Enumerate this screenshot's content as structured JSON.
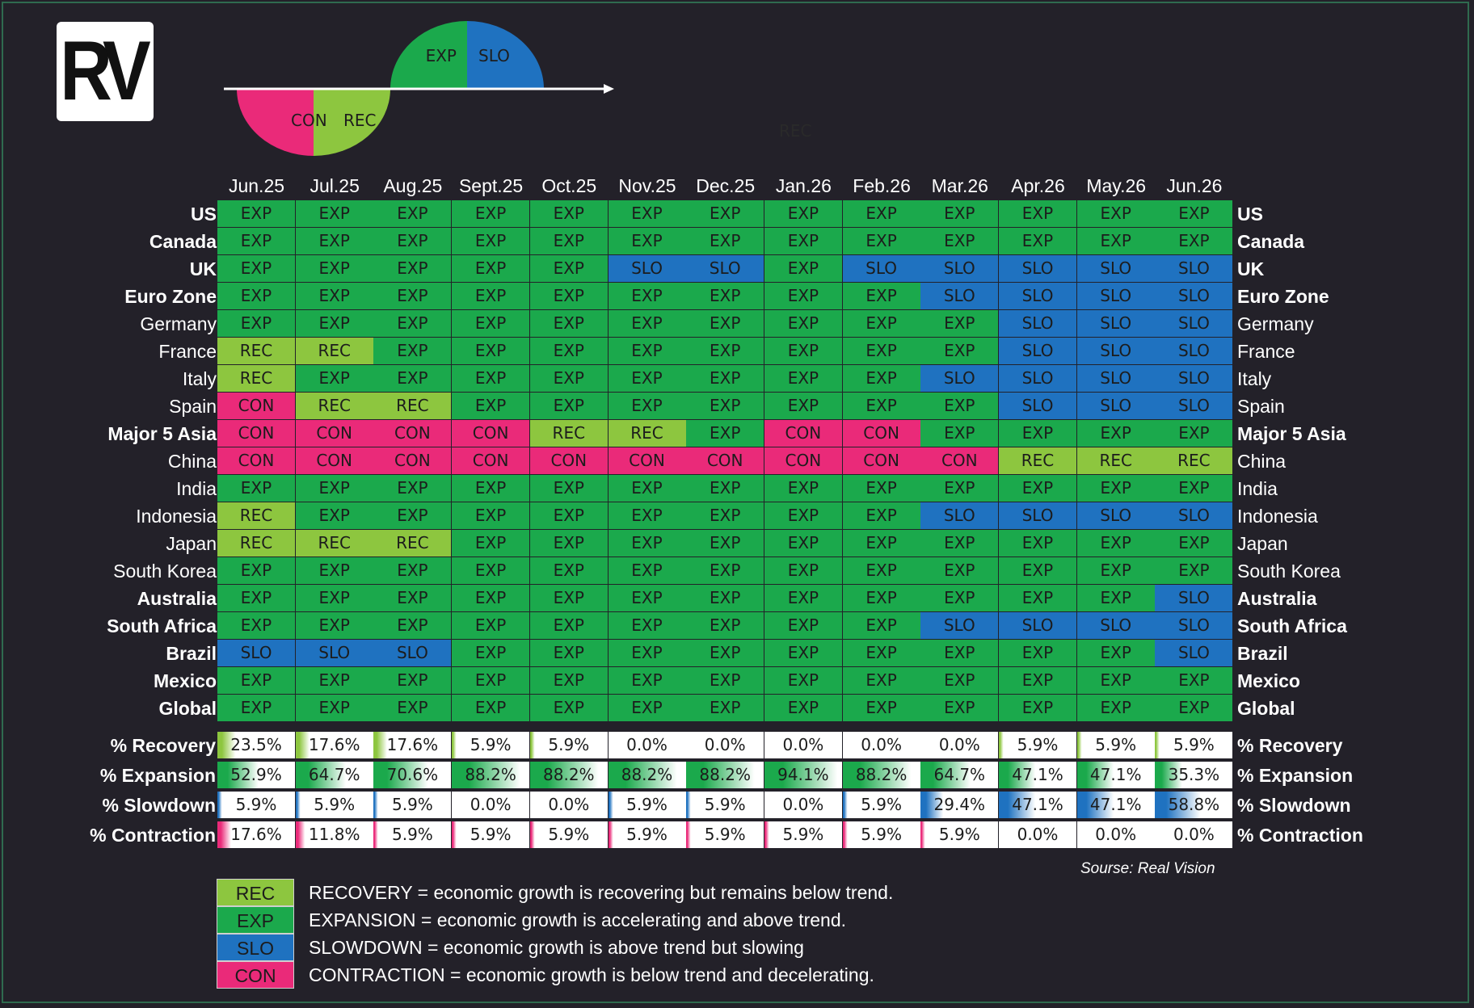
{
  "logo": {
    "text": "RV"
  },
  "cycle_diagram": {
    "labels": [
      "CON",
      "REC",
      "EXP",
      "SLO"
    ]
  },
  "stray_label": "REC",
  "colors": {
    "REC": "#8dc63f",
    "EXP": "#1ba94c",
    "SLO": "#1f72c0",
    "CON": "#ea2a79"
  },
  "chart_data": {
    "type": "heatmap",
    "columns": [
      "Jun.25",
      "Jul.25",
      "Aug.25",
      "Sept.25",
      "Oct.25",
      "Nov.25",
      "Dec.25",
      "Jan.26",
      "Feb.26",
      "Mar.26",
      "Apr.26",
      "May.26",
      "Jun.26"
    ],
    "rows": [
      {
        "label": "US",
        "bold": true,
        "phases": [
          "EXP",
          "EXP",
          "EXP",
          "EXP",
          "EXP",
          "EXP",
          "EXP",
          "EXP",
          "EXP",
          "EXP",
          "EXP",
          "EXP",
          "EXP"
        ]
      },
      {
        "label": "Canada",
        "bold": true,
        "phases": [
          "EXP",
          "EXP",
          "EXP",
          "EXP",
          "EXP",
          "EXP",
          "EXP",
          "EXP",
          "EXP",
          "EXP",
          "EXP",
          "EXP",
          "EXP"
        ]
      },
      {
        "label": "UK",
        "bold": true,
        "phases": [
          "EXP",
          "EXP",
          "EXP",
          "EXP",
          "EXP",
          "SLO",
          "SLO",
          "EXP",
          "SLO",
          "SLO",
          "SLO",
          "SLO",
          "SLO"
        ]
      },
      {
        "label": "Euro Zone",
        "bold": true,
        "phases": [
          "EXP",
          "EXP",
          "EXP",
          "EXP",
          "EXP",
          "EXP",
          "EXP",
          "EXP",
          "EXP",
          "SLO",
          "SLO",
          "SLO",
          "SLO"
        ]
      },
      {
        "label": "Germany",
        "bold": false,
        "phases": [
          "EXP",
          "EXP",
          "EXP",
          "EXP",
          "EXP",
          "EXP",
          "EXP",
          "EXP",
          "EXP",
          "EXP",
          "SLO",
          "SLO",
          "SLO"
        ]
      },
      {
        "label": "France",
        "bold": false,
        "phases": [
          "REC",
          "REC",
          "EXP",
          "EXP",
          "EXP",
          "EXP",
          "EXP",
          "EXP",
          "EXP",
          "EXP",
          "SLO",
          "SLO",
          "SLO"
        ]
      },
      {
        "label": "Italy",
        "bold": false,
        "phases": [
          "REC",
          "EXP",
          "EXP",
          "EXP",
          "EXP",
          "EXP",
          "EXP",
          "EXP",
          "EXP",
          "SLO",
          "SLO",
          "SLO",
          "SLO"
        ]
      },
      {
        "label": "Spain",
        "bold": false,
        "phases": [
          "CON",
          "REC",
          "REC",
          "EXP",
          "EXP",
          "EXP",
          "EXP",
          "EXP",
          "EXP",
          "EXP",
          "SLO",
          "SLO",
          "SLO"
        ]
      },
      {
        "label": "Major 5 Asia",
        "bold": true,
        "phases": [
          "CON",
          "CON",
          "CON",
          "CON",
          "REC",
          "REC",
          "EXP",
          "CON",
          "CON",
          "EXP",
          "EXP",
          "EXP",
          "EXP"
        ]
      },
      {
        "label": "China",
        "bold": false,
        "phases": [
          "CON",
          "CON",
          "CON",
          "CON",
          "CON",
          "CON",
          "CON",
          "CON",
          "CON",
          "CON",
          "REC",
          "REC",
          "REC"
        ]
      },
      {
        "label": "India",
        "bold": false,
        "phases": [
          "EXP",
          "EXP",
          "EXP",
          "EXP",
          "EXP",
          "EXP",
          "EXP",
          "EXP",
          "EXP",
          "EXP",
          "EXP",
          "EXP",
          "EXP"
        ]
      },
      {
        "label": "Indonesia",
        "bold": false,
        "phases": [
          "REC",
          "EXP",
          "EXP",
          "EXP",
          "EXP",
          "EXP",
          "EXP",
          "EXP",
          "EXP",
          "SLO",
          "SLO",
          "SLO",
          "SLO"
        ]
      },
      {
        "label": "Japan",
        "bold": false,
        "phases": [
          "REC",
          "REC",
          "REC",
          "EXP",
          "EXP",
          "EXP",
          "EXP",
          "EXP",
          "EXP",
          "EXP",
          "EXP",
          "EXP",
          "EXP"
        ]
      },
      {
        "label": "South Korea",
        "bold": false,
        "phases": [
          "EXP",
          "EXP",
          "EXP",
          "EXP",
          "EXP",
          "EXP",
          "EXP",
          "EXP",
          "EXP",
          "EXP",
          "EXP",
          "EXP",
          "EXP"
        ]
      },
      {
        "label": "Australia",
        "bold": true,
        "phases": [
          "EXP",
          "EXP",
          "EXP",
          "EXP",
          "EXP",
          "EXP",
          "EXP",
          "EXP",
          "EXP",
          "EXP",
          "EXP",
          "EXP",
          "SLO"
        ]
      },
      {
        "label": "South Africa",
        "bold": true,
        "phases": [
          "EXP",
          "EXP",
          "EXP",
          "EXP",
          "EXP",
          "EXP",
          "EXP",
          "EXP",
          "EXP",
          "SLO",
          "SLO",
          "SLO",
          "SLO"
        ]
      },
      {
        "label": "Brazil",
        "bold": true,
        "phases": [
          "SLO",
          "SLO",
          "SLO",
          "EXP",
          "EXP",
          "EXP",
          "EXP",
          "EXP",
          "EXP",
          "EXP",
          "EXP",
          "EXP",
          "SLO"
        ]
      },
      {
        "label": "Mexico",
        "bold": true,
        "phases": [
          "EXP",
          "EXP",
          "EXP",
          "EXP",
          "EXP",
          "EXP",
          "EXP",
          "EXP",
          "EXP",
          "EXP",
          "EXP",
          "EXP",
          "EXP"
        ]
      },
      {
        "label": "Global",
        "bold": true,
        "phases": [
          "EXP",
          "EXP",
          "EXP",
          "EXP",
          "EXP",
          "EXP",
          "EXP",
          "EXP",
          "EXP",
          "EXP",
          "EXP",
          "EXP",
          "EXP"
        ]
      }
    ],
    "summary": [
      {
        "label": "% Recovery",
        "phase": "REC",
        "values": [
          23.5,
          17.6,
          17.6,
          5.9,
          5.9,
          0.0,
          0.0,
          0.0,
          0.0,
          0.0,
          5.9,
          5.9,
          5.9
        ]
      },
      {
        "label": "% Expansion",
        "phase": "EXP",
        "values": [
          52.9,
          64.7,
          70.6,
          88.2,
          88.2,
          88.2,
          88.2,
          94.1,
          88.2,
          64.7,
          47.1,
          47.1,
          35.3
        ]
      },
      {
        "label": "% Slowdown",
        "phase": "SLO",
        "values": [
          5.9,
          5.9,
          5.9,
          0.0,
          0.0,
          5.9,
          5.9,
          0.0,
          5.9,
          29.4,
          47.1,
          47.1,
          58.8
        ]
      },
      {
        "label": "% Contraction",
        "phase": "CON",
        "values": [
          17.6,
          11.8,
          5.9,
          5.9,
          5.9,
          5.9,
          5.9,
          5.9,
          5.9,
          5.9,
          0.0,
          0.0,
          0.0
        ]
      }
    ],
    "source": "Sourse: Real Vision"
  },
  "legend": [
    {
      "code": "REC",
      "text": "RECOVERY = economic growth is recovering but remains below trend."
    },
    {
      "code": "EXP",
      "text": "EXPANSION = economic growth is accelerating and above trend."
    },
    {
      "code": "SLO",
      "text": "SLOWDOWN = economic growth is above trend but slowing"
    },
    {
      "code": "CON",
      "text": "CONTRACTION = economic growth is below trend and decelerating."
    }
  ]
}
